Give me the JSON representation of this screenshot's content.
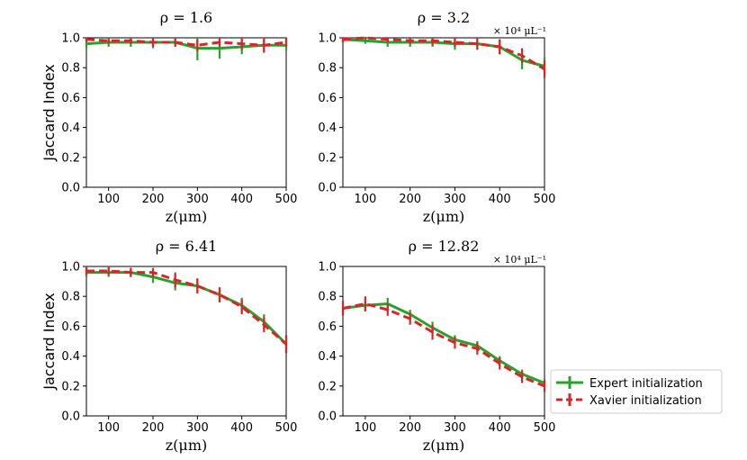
{
  "chart_data": [
    {
      "type": "line",
      "title": "ρ = 1.6",
      "unit_label": "",
      "xlabel": "z(μm)",
      "ylabel": "Jaccard Index",
      "xlim": [
        50,
        500
      ],
      "ylim": [
        0,
        1
      ],
      "xticks": [
        "100",
        "200",
        "300",
        "400",
        "500"
      ],
      "yticks": [
        "0.0",
        "0.2",
        "0.4",
        "0.6",
        "0.8",
        "1.0"
      ],
      "x": [
        50,
        100,
        150,
        200,
        250,
        300,
        350,
        400,
        450,
        500
      ],
      "series": [
        {
          "name": "Expert initialization",
          "values": [
            0.96,
            0.97,
            0.97,
            0.97,
            0.97,
            0.93,
            0.93,
            0.94,
            0.95,
            0.95
          ],
          "errors": [
            0.03,
            0.03,
            0.03,
            0.04,
            0.03,
            0.08,
            0.07,
            0.05,
            0.04,
            0.03
          ]
        },
        {
          "name": "Xavier initialization",
          "values": [
            0.99,
            0.98,
            0.98,
            0.97,
            0.97,
            0.95,
            0.97,
            0.96,
            0.95,
            0.97
          ],
          "errors": [
            0.02,
            0.02,
            0.02,
            0.03,
            0.03,
            0.04,
            0.03,
            0.04,
            0.05,
            0.03
          ]
        }
      ]
    },
    {
      "type": "line",
      "title": "ρ = 3.2",
      "unit_label": "× 10⁴ μL⁻¹",
      "xlabel": "z(μm)",
      "ylabel": "",
      "xlim": [
        50,
        500
      ],
      "ylim": [
        0,
        1
      ],
      "xticks": [
        "100",
        "200",
        "300",
        "400",
        "500"
      ],
      "yticks": [
        "0.0",
        "0.2",
        "0.4",
        "0.6",
        "0.8",
        "1.0"
      ],
      "x": [
        50,
        100,
        150,
        200,
        250,
        300,
        350,
        400,
        450,
        500
      ],
      "series": [
        {
          "name": "Expert initialization",
          "values": [
            0.99,
            0.98,
            0.97,
            0.97,
            0.97,
            0.96,
            0.96,
            0.94,
            0.85,
            0.81
          ],
          "errors": [
            0.02,
            0.02,
            0.03,
            0.03,
            0.03,
            0.04,
            0.04,
            0.05,
            0.06,
            0.06
          ]
        },
        {
          "name": "Xavier initialization",
          "values": [
            0.99,
            1.0,
            0.99,
            0.98,
            0.98,
            0.97,
            0.96,
            0.94,
            0.88,
            0.79
          ],
          "errors": [
            0.02,
            0.01,
            0.02,
            0.02,
            0.03,
            0.03,
            0.04,
            0.05,
            0.05,
            0.06
          ]
        }
      ]
    },
    {
      "type": "line",
      "title": "ρ = 6.41",
      "unit_label": "",
      "xlabel": "z(μm)",
      "ylabel": "Jaccard Index",
      "xlim": [
        50,
        500
      ],
      "ylim": [
        0,
        1
      ],
      "xticks": [
        "100",
        "200",
        "300",
        "400",
        "500"
      ],
      "yticks": [
        "0.0",
        "0.2",
        "0.4",
        "0.6",
        "0.8",
        "1.0"
      ],
      "x": [
        50,
        100,
        150,
        200,
        250,
        300,
        350,
        400,
        450,
        500
      ],
      "series": [
        {
          "name": "Expert initialization",
          "values": [
            0.96,
            0.96,
            0.96,
            0.93,
            0.89,
            0.87,
            0.81,
            0.74,
            0.63,
            0.48
          ],
          "errors": [
            0.03,
            0.03,
            0.03,
            0.04,
            0.05,
            0.05,
            0.05,
            0.05,
            0.05,
            0.06
          ]
        },
        {
          "name": "Xavier initialization",
          "values": [
            0.97,
            0.97,
            0.96,
            0.96,
            0.91,
            0.87,
            0.81,
            0.73,
            0.61,
            0.48
          ],
          "errors": [
            0.03,
            0.03,
            0.03,
            0.03,
            0.05,
            0.05,
            0.05,
            0.05,
            0.05,
            0.06
          ]
        }
      ]
    },
    {
      "type": "line",
      "title": "ρ = 12.82",
      "unit_label": "× 10⁴ μL⁻¹",
      "xlabel": "z(μm)",
      "ylabel": "",
      "xlim": [
        50,
        500
      ],
      "ylim": [
        0,
        1
      ],
      "xticks": [
        "100",
        "200",
        "300",
        "400",
        "500"
      ],
      "yticks": [
        "0.0",
        "0.2",
        "0.4",
        "0.6",
        "0.8",
        "1.0"
      ],
      "x": [
        50,
        100,
        150,
        200,
        250,
        300,
        350,
        400,
        450,
        500
      ],
      "series": [
        {
          "name": "Expert initialization",
          "values": [
            0.72,
            0.74,
            0.75,
            0.68,
            0.59,
            0.51,
            0.47,
            0.37,
            0.28,
            0.22
          ],
          "errors": [
            0.04,
            0.04,
            0.04,
            0.03,
            0.04,
            0.03,
            0.03,
            0.03,
            0.03,
            0.03
          ]
        },
        {
          "name": "Xavier initialization",
          "values": [
            0.72,
            0.75,
            0.71,
            0.65,
            0.56,
            0.49,
            0.45,
            0.35,
            0.26,
            0.2
          ],
          "errors": [
            0.05,
            0.05,
            0.04,
            0.04,
            0.05,
            0.04,
            0.04,
            0.04,
            0.04,
            0.04
          ]
        }
      ]
    }
  ],
  "legend": {
    "items": [
      {
        "label": "Expert initialization",
        "color": "#2ca02c",
        "dash": false
      },
      {
        "label": "Xavier initialization",
        "color": "#d62728",
        "dash": true
      }
    ]
  }
}
